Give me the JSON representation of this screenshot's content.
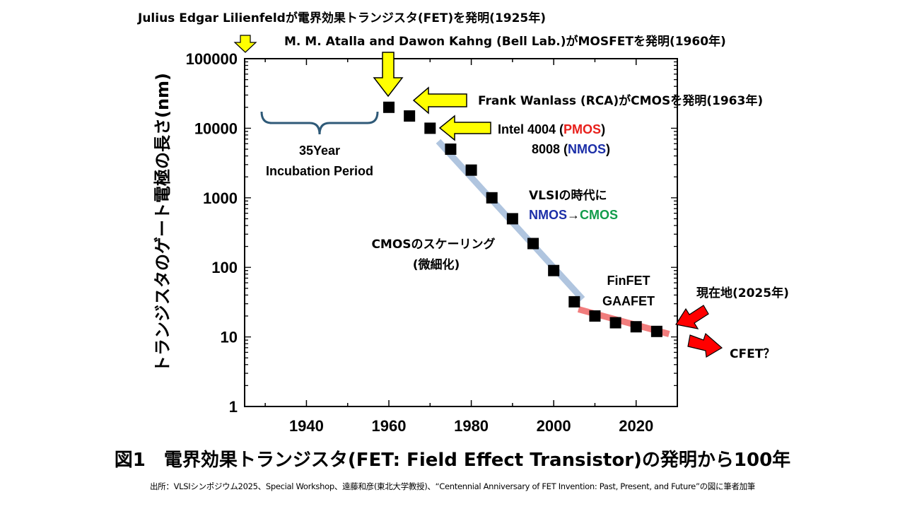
{
  "chart_data": {
    "type": "scatter",
    "title": "",
    "ylabel": "トランジスタのゲート電極の長さ(nm)",
    "xlabel": "",
    "y_scale": "log",
    "xlim": [
      1925,
      2030
    ],
    "ylim": [
      1,
      100000
    ],
    "x_ticks": [
      "1940",
      "1960",
      "1980",
      "2000",
      "2020"
    ],
    "y_ticks": [
      "1",
      "10",
      "100",
      "1000",
      "10000",
      "100000"
    ],
    "grid": false,
    "points": [
      {
        "x": 1960,
        "y": 20000
      },
      {
        "x": 1965,
        "y": 15000
      },
      {
        "x": 1970,
        "y": 10000
      },
      {
        "x": 1975,
        "y": 5000
      },
      {
        "x": 1980,
        "y": 2500
      },
      {
        "x": 1985,
        "y": 1000
      },
      {
        "x": 1990,
        "y": 500
      },
      {
        "x": 1995,
        "y": 220
      },
      {
        "x": 2000,
        "y": 90
      },
      {
        "x": 2005,
        "y": 32
      },
      {
        "x": 2010,
        "y": 20
      },
      {
        "x": 2015,
        "y": 16
      },
      {
        "x": 2020,
        "y": 14
      },
      {
        "x": 2025,
        "y": 12
      }
    ],
    "trend_lines": [
      {
        "color": "#a8bfdc",
        "from": [
          1972,
          6500
        ],
        "to": [
          2007,
          35
        ]
      },
      {
        "color": "#f07070",
        "from": [
          2006,
          25
        ],
        "to": [
          2028,
          11
        ]
      }
    ],
    "annotations": {
      "fet_invention": "Julius Edgar Lilienfeldが電界効果トランジスタ(FET)を発明(1925年)",
      "mosfet_invention": "M. M. Atalla and Dawon Kahng (Bell Lab.)がMOSFETを発明(1960年)",
      "cmos_invention": "Frank Wanlass (RCA)がCMOSを発明(1963年)",
      "intel_4004_prefix": "Intel 4004 (",
      "intel_4004_highlight": "PMOS",
      "intel_4004_suffix": ")",
      "intel_8008_prefix": "8008 (",
      "intel_8008_highlight": "NMOS",
      "intel_8008_suffix": ")",
      "incubation_line1": "35Year",
      "incubation_line2": "Incubation Period",
      "vlsi_line1": "VLSIの時代に",
      "vlsi_nmos": "NMOS",
      "vlsi_arrow": "→",
      "vlsi_cmos": "CMOS",
      "scaling_line1": "CMOSのスケーリング",
      "scaling_line2": "(微細化)",
      "finfet": "FinFET",
      "gaafet": "GAAFET",
      "current": "現在地(2025年)",
      "cfet": "CFET？"
    },
    "colors": {
      "pmos": "#e8201c",
      "nmos": "#1c2fa8",
      "cmos": "#119c4a",
      "yellow_arrow": "#ffff00",
      "red_arrow": "#ff0000",
      "brace": "#2f5a78"
    }
  },
  "caption": "図1　電界効果トランジスタ(FET: Field Effect Transistor)の発明から100年",
  "source": "出所：VLSIシンポジウム2025、Special Workshop、遠藤和彦(東北大学教授)、“Centennial Anniversary of FET Invention: Past, Present, and Future”の図に筆者加筆"
}
